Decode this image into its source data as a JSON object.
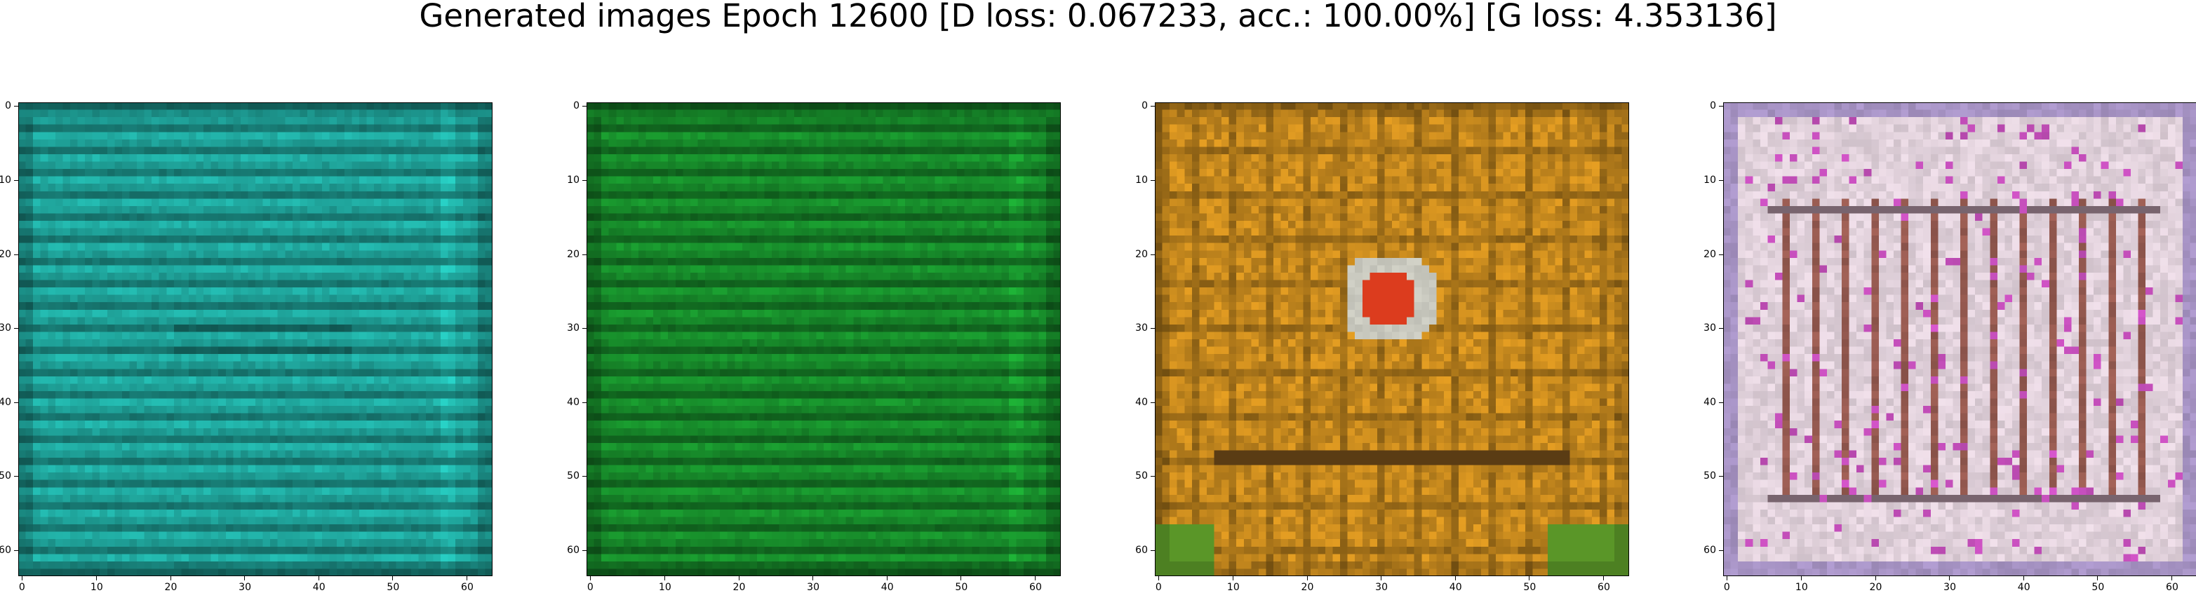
{
  "figure": {
    "title": "Generated images Epoch 12600 [D loss: 0.067233, acc.: 100.00%] [G loss: 4.353136]",
    "epoch": 12600,
    "d_loss": 0.067233,
    "accuracy_percent": 100.0,
    "g_loss": 4.353136
  },
  "axes": {
    "x_ticks": [
      "0",
      "10",
      "20",
      "30",
      "40",
      "50",
      "60"
    ],
    "y_ticks": [
      "0",
      "10",
      "20",
      "30",
      "40",
      "50",
      "60"
    ],
    "extent": [
      0,
      63
    ]
  },
  "panels": [
    {
      "name": "generated-image-1",
      "dominant_color": "#1fa39a",
      "style": "teal horizontal stripes"
    },
    {
      "name": "generated-image-2",
      "dominant_color": "#178a2a",
      "style": "green horizontal stripes"
    },
    {
      "name": "generated-image-3",
      "dominant_color": "#c88a1e",
      "style": "orange grid with red center"
    },
    {
      "name": "generated-image-4",
      "dominant_color": "#e6d6e0",
      "style": "pale pink grid pattern"
    }
  ]
}
